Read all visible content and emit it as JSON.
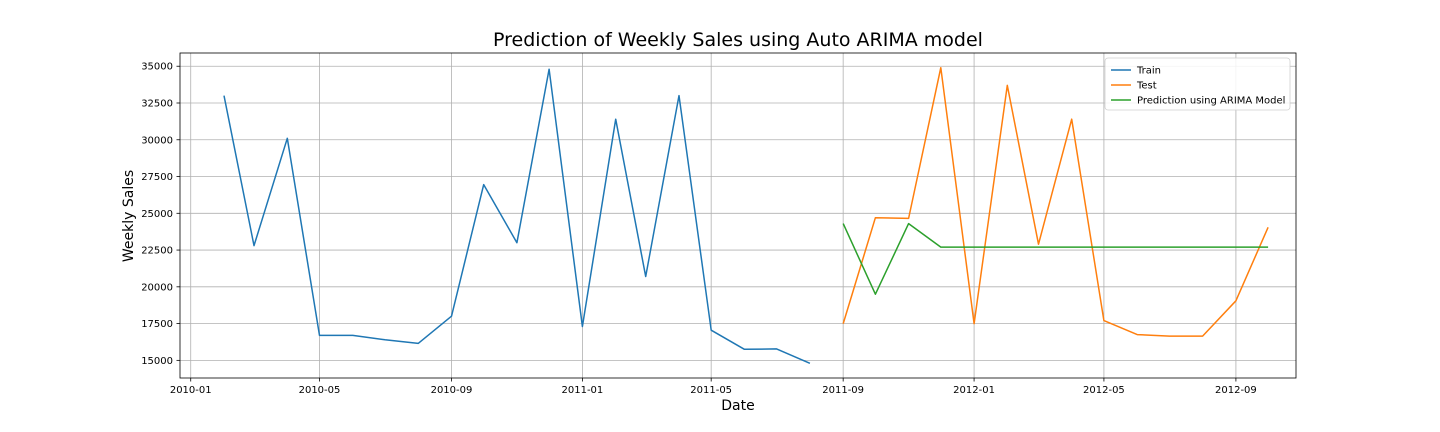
{
  "chart_data": {
    "type": "line",
    "title": "Prediction of Weekly Sales using Auto ARIMA model",
    "xlabel": "Date",
    "ylabel": "Weekly Sales",
    "xlim": [
      "2009-12-22",
      "2012-10-27"
    ],
    "ylim": [
      13800,
      35900
    ],
    "x_ticks": [
      "2010-01",
      "2010-05",
      "2010-09",
      "2011-01",
      "2011-05",
      "2011-09",
      "2012-01",
      "2012-05",
      "2012-09"
    ],
    "y_ticks": [
      15000,
      17500,
      20000,
      22500,
      25000,
      27500,
      30000,
      32500,
      35000
    ],
    "grid": true,
    "legend_position": "top-right",
    "series": [
      {
        "name": "Train",
        "color": "#1f77b4",
        "x": [
          "2010-02-01",
          "2010-03-01",
          "2010-04-01",
          "2010-05-01",
          "2010-06-01",
          "2010-07-01",
          "2010-08-01",
          "2010-09-01",
          "2010-10-01",
          "2010-11-01",
          "2010-12-01",
          "2011-01-01",
          "2011-02-01",
          "2011-03-01",
          "2011-04-01",
          "2011-05-01",
          "2011-06-01",
          "2011-07-01",
          "2011-08-01"
        ],
        "values": [
          33000,
          22800,
          30100,
          16700,
          16700,
          16400,
          16150,
          18000,
          26950,
          23000,
          34800,
          17300,
          31400,
          20700,
          33000,
          17050,
          15750,
          15780,
          14800
        ]
      },
      {
        "name": "Test",
        "color": "#ff7f0e",
        "x": [
          "2011-09-01",
          "2011-10-01",
          "2011-11-01",
          "2011-12-01",
          "2012-01-01",
          "2012-02-01",
          "2012-03-01",
          "2012-04-01",
          "2012-05-01",
          "2012-06-01",
          "2012-07-01",
          "2012-08-01",
          "2012-09-01",
          "2012-10-01"
        ],
        "values": [
          17500,
          24700,
          24650,
          34900,
          17500,
          33700,
          22900,
          31400,
          17700,
          16750,
          16650,
          16650,
          19050,
          24050
        ]
      },
      {
        "name": "Prediction using ARIMA Model",
        "color": "#2ca02c",
        "x": [
          "2011-09-01",
          "2011-10-01",
          "2011-11-01",
          "2011-12-01",
          "2012-01-01",
          "2012-02-01",
          "2012-03-01",
          "2012-04-01",
          "2012-05-01",
          "2012-06-01",
          "2012-07-01",
          "2012-08-01",
          "2012-09-01",
          "2012-10-01"
        ],
        "values": [
          24300,
          19500,
          24300,
          22700,
          22700,
          22700,
          22700,
          22700,
          22700,
          22700,
          22700,
          22700,
          22700,
          22700
        ]
      }
    ]
  }
}
